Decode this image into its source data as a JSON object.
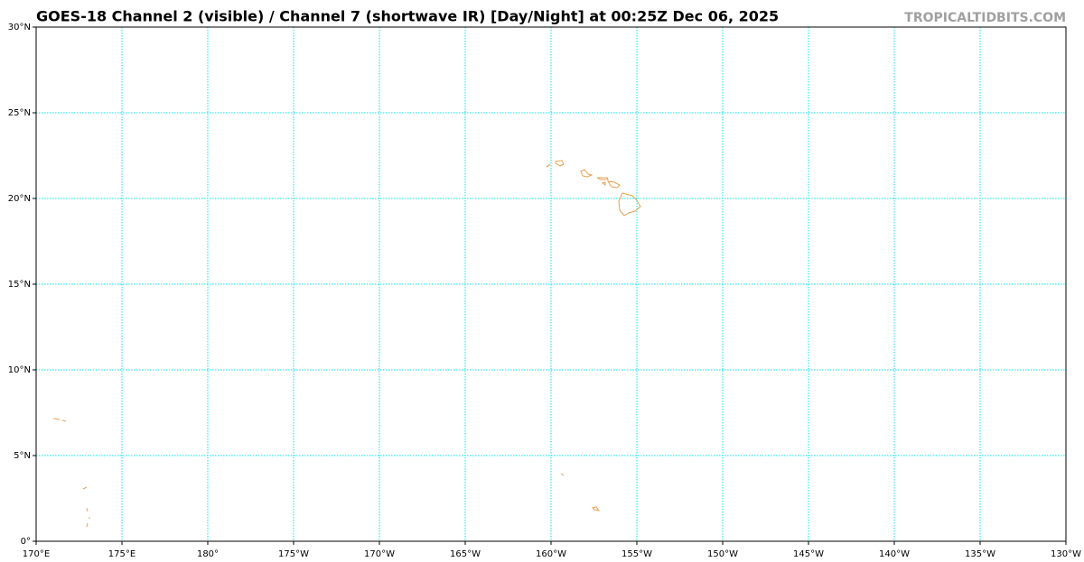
{
  "map": {
    "title": "GOES-18 Channel 2 (visible) / Channel 7 (shortwave IR) [Day/Night] at 00:25Z Dec 06, 2025",
    "credit": "TROPICALTIDBITS.COM",
    "xlim": [
      170,
      230
    ],
    "ylim": [
      0,
      30
    ],
    "grid_color": "#00e5ee",
    "xticks": [
      {
        "value": 170,
        "label": "170°E"
      },
      {
        "value": 175,
        "label": "175°E"
      },
      {
        "value": 180,
        "label": "180°"
      },
      {
        "value": 185,
        "label": "175°W"
      },
      {
        "value": 190,
        "label": "170°W"
      },
      {
        "value": 195,
        "label": "165°W"
      },
      {
        "value": 200,
        "label": "160°W"
      },
      {
        "value": 205,
        "label": "155°W"
      },
      {
        "value": 210,
        "label": "150°W"
      },
      {
        "value": 215,
        "label": "145°W"
      },
      {
        "value": 220,
        "label": "140°W"
      },
      {
        "value": 225,
        "label": "135°W"
      },
      {
        "value": 230,
        "label": "130°W"
      }
    ],
    "yticks": [
      {
        "value": 0,
        "label": "0°"
      },
      {
        "value": 5,
        "label": "5°N"
      },
      {
        "value": 10,
        "label": "10°N"
      },
      {
        "value": 15,
        "label": "15°N"
      },
      {
        "value": 20,
        "label": "20°N"
      },
      {
        "value": 25,
        "label": "25°N"
      },
      {
        "value": 30,
        "label": "30°N"
      }
    ]
  }
}
